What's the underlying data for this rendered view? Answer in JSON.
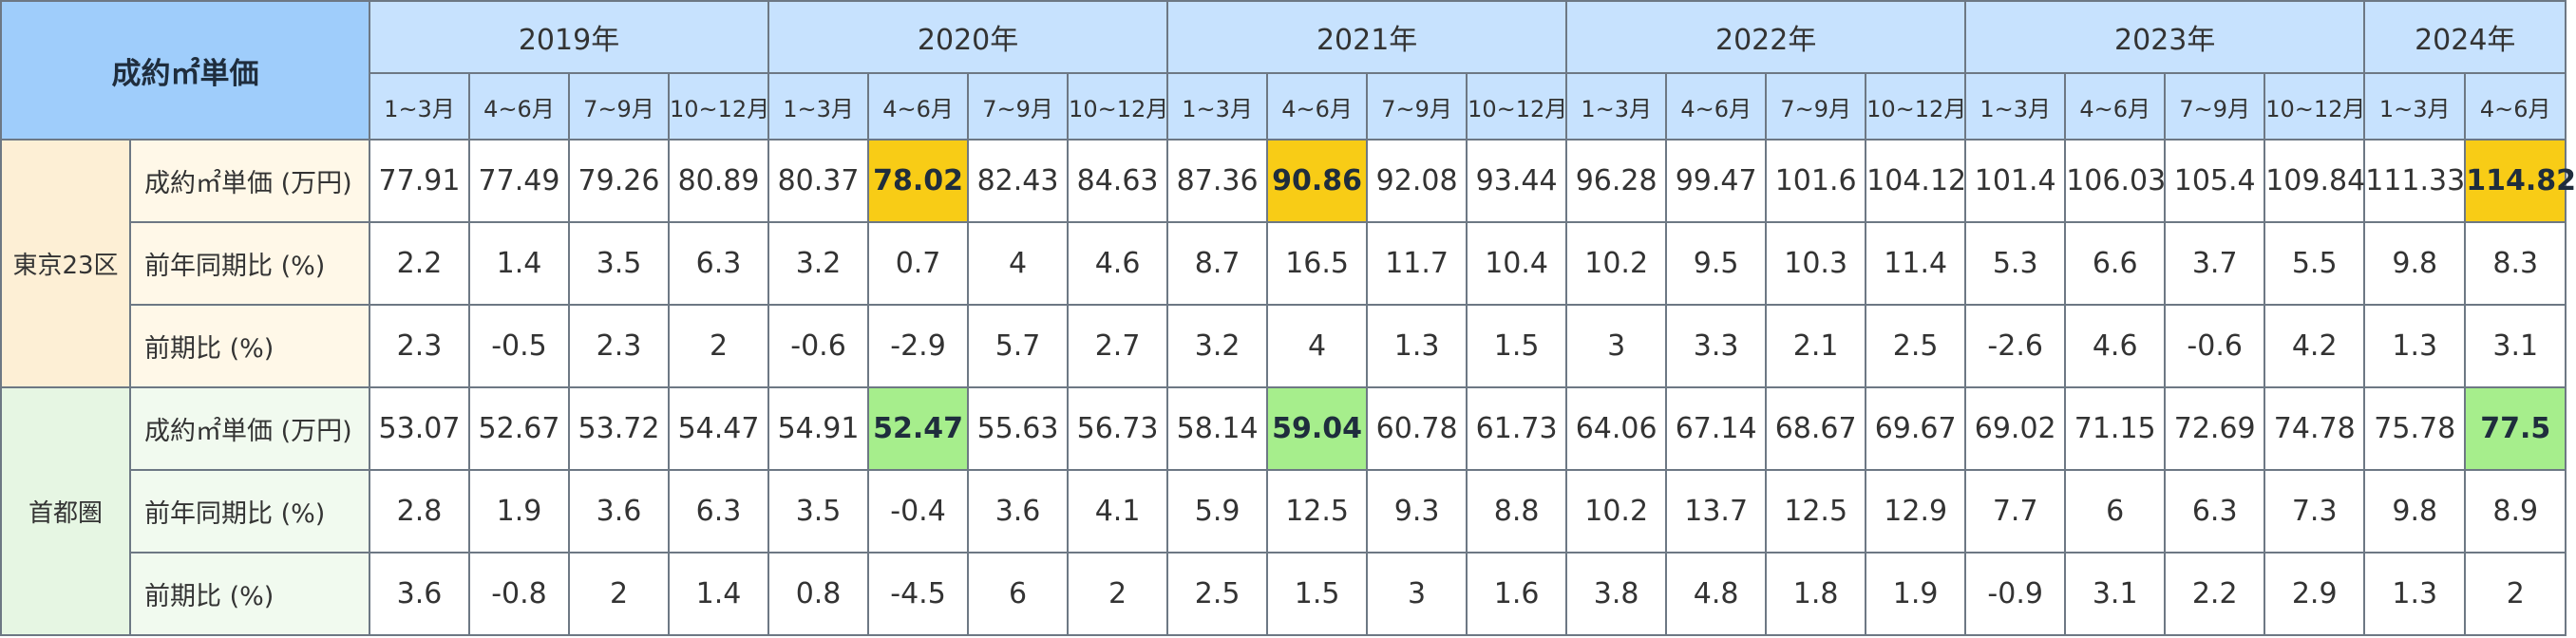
{
  "header": {
    "corner_label": "成約㎡単価",
    "years": [
      {
        "label": "2019年",
        "quarters": [
          "1~3月",
          "4~6月",
          "7~9月",
          "10~12月"
        ]
      },
      {
        "label": "2020年",
        "quarters": [
          "1~3月",
          "4~6月",
          "7~9月",
          "10~12月"
        ]
      },
      {
        "label": "2021年",
        "quarters": [
          "1~3月",
          "4~6月",
          "7~9月",
          "10~12月"
        ]
      },
      {
        "label": "2022年",
        "quarters": [
          "1~3月",
          "4~6月",
          "7~9月",
          "10~12月"
        ]
      },
      {
        "label": "2023年",
        "quarters": [
          "1~3月",
          "4~6月",
          "7~9月",
          "10~12月"
        ]
      },
      {
        "label": "2024年",
        "quarters": [
          "1~3月",
          "4~6月"
        ]
      }
    ]
  },
  "regions": [
    {
      "name": "東京23区",
      "rows": [
        {
          "label": "成約㎡単価 (万円)",
          "values": [
            "77.91",
            "77.49",
            "79.26",
            "80.89",
            "80.37",
            "78.02",
            "82.43",
            "84.63",
            "87.36",
            "90.86",
            "92.08",
            "93.44",
            "96.28",
            "99.47",
            "101.6",
            "104.12",
            "101.4",
            "106.03",
            "105.4",
            "109.84",
            "111.33",
            "114.82"
          ]
        },
        {
          "label": "前年同期比 (%)",
          "values": [
            "2.2",
            "1.4",
            "3.5",
            "6.3",
            "3.2",
            "0.7",
            "4",
            "4.6",
            "8.7",
            "16.5",
            "11.7",
            "10.4",
            "10.2",
            "9.5",
            "10.3",
            "11.4",
            "5.3",
            "6.6",
            "3.7",
            "5.5",
            "9.8",
            "8.3"
          ]
        },
        {
          "label": "前期比 (%)",
          "values": [
            "2.3",
            "-0.5",
            "2.3",
            "2",
            "-0.6",
            "-2.9",
            "5.7",
            "2.7",
            "3.2",
            "4",
            "1.3",
            "1.5",
            "3",
            "3.3",
            "2.1",
            "2.5",
            "-2.6",
            "4.6",
            "-0.6",
            "4.2",
            "1.3",
            "3.1"
          ]
        }
      ]
    },
    {
      "name": "首都圏",
      "rows": [
        {
          "label": "成約㎡単価 (万円)",
          "values": [
            "53.07",
            "52.67",
            "53.72",
            "54.47",
            "54.91",
            "52.47",
            "55.63",
            "56.73",
            "58.14",
            "59.04",
            "60.78",
            "61.73",
            "64.06",
            "67.14",
            "68.67",
            "69.67",
            "69.02",
            "71.15",
            "72.69",
            "74.78",
            "75.78",
            "77.5"
          ]
        },
        {
          "label": "前年同期比 (%)",
          "values": [
            "2.8",
            "1.9",
            "3.6",
            "6.3",
            "3.5",
            "-0.4",
            "3.6",
            "4.1",
            "5.9",
            "12.5",
            "9.3",
            "8.8",
            "10.2",
            "13.7",
            "12.5",
            "12.9",
            "7.7",
            "6",
            "6.3",
            "7.3",
            "9.8",
            "8.9"
          ]
        },
        {
          "label": "前期比 (%)",
          "values": [
            "3.6",
            "-0.8",
            "2",
            "1.4",
            "0.8",
            "-4.5",
            "6",
            "2",
            "2.5",
            "1.5",
            "3",
            "1.6",
            "3.8",
            "4.8",
            "1.8",
            "1.9",
            "-0.9",
            "3.1",
            "2.2",
            "2.9",
            "1.3",
            "2"
          ]
        }
      ]
    }
  ],
  "highlights": {
    "tokyo_color": "#f8cc16",
    "metro_color": "#a6ee8c",
    "tokyo_price_cells": [
      5,
      9,
      21
    ],
    "metro_price_cells": [
      5,
      9,
      21
    ]
  }
}
